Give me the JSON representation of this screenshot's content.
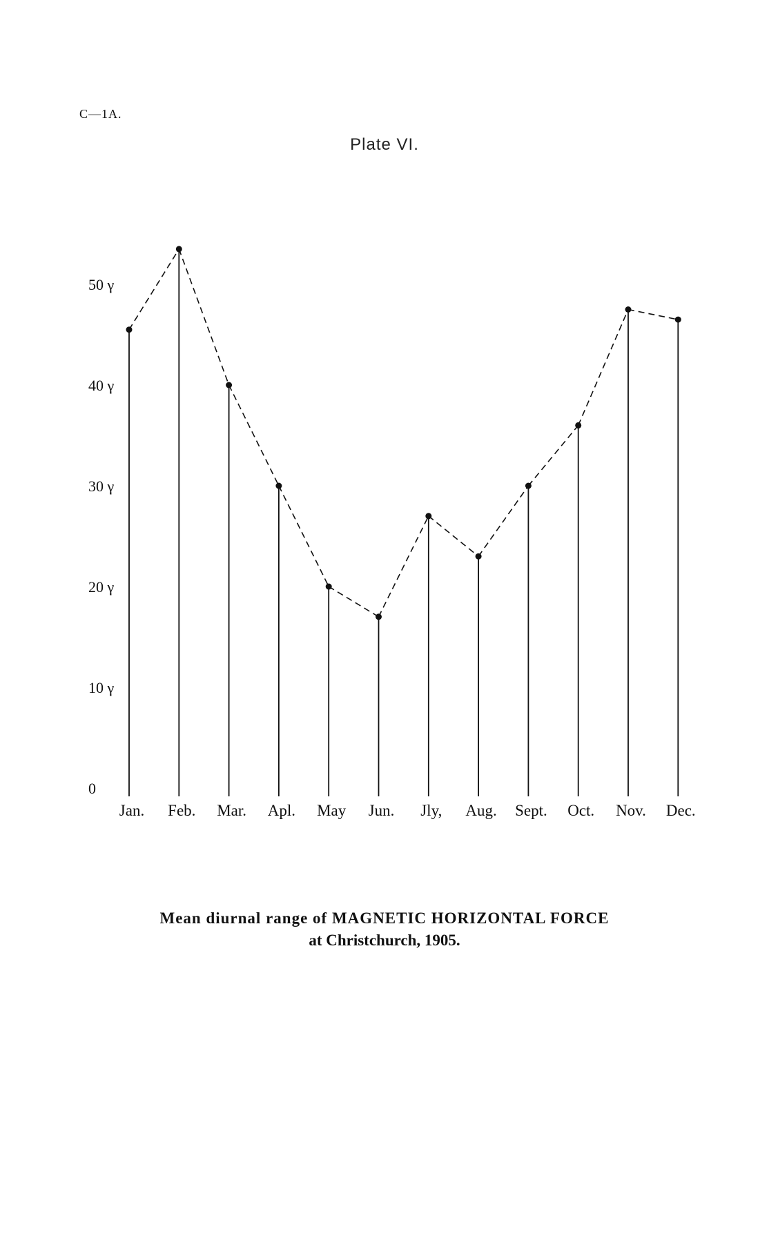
{
  "header": {
    "page_code": "C—1A.",
    "plate_title": "Plate VI."
  },
  "caption": {
    "line1": "Mean diurnal range of MAGNETIC HORIZONTAL FORCE",
    "line2": "at Christchurch, 1905."
  },
  "chart_data": {
    "type": "line",
    "title": "",
    "xlabel": "",
    "ylabel": "",
    "categories": [
      "Jan.",
      "Feb.",
      "Mar.",
      "Apl.",
      "May",
      "Jun.",
      "Jly,",
      "Aug.",
      "Sept.",
      "Oct.",
      "Nov.",
      "Dec."
    ],
    "series": [
      {
        "values": [
          45.5,
          53.5,
          40,
          30,
          20,
          17,
          27,
          23,
          30,
          36,
          47.5,
          46.5
        ]
      }
    ],
    "y_ticks": [
      {
        "value": 0,
        "label": "0"
      },
      {
        "value": 10,
        "label": "10 γ"
      },
      {
        "value": 20,
        "label": "20 γ"
      },
      {
        "value": 30,
        "label": "30 γ"
      },
      {
        "value": 40,
        "label": "40 γ"
      },
      {
        "value": 50,
        "label": "50 γ"
      }
    ],
    "ylim": [
      0,
      55
    ],
    "grid": false,
    "style": {
      "line": "dashed",
      "markers": "filled-circle",
      "drop_lines": true,
      "color": "#111111"
    }
  }
}
